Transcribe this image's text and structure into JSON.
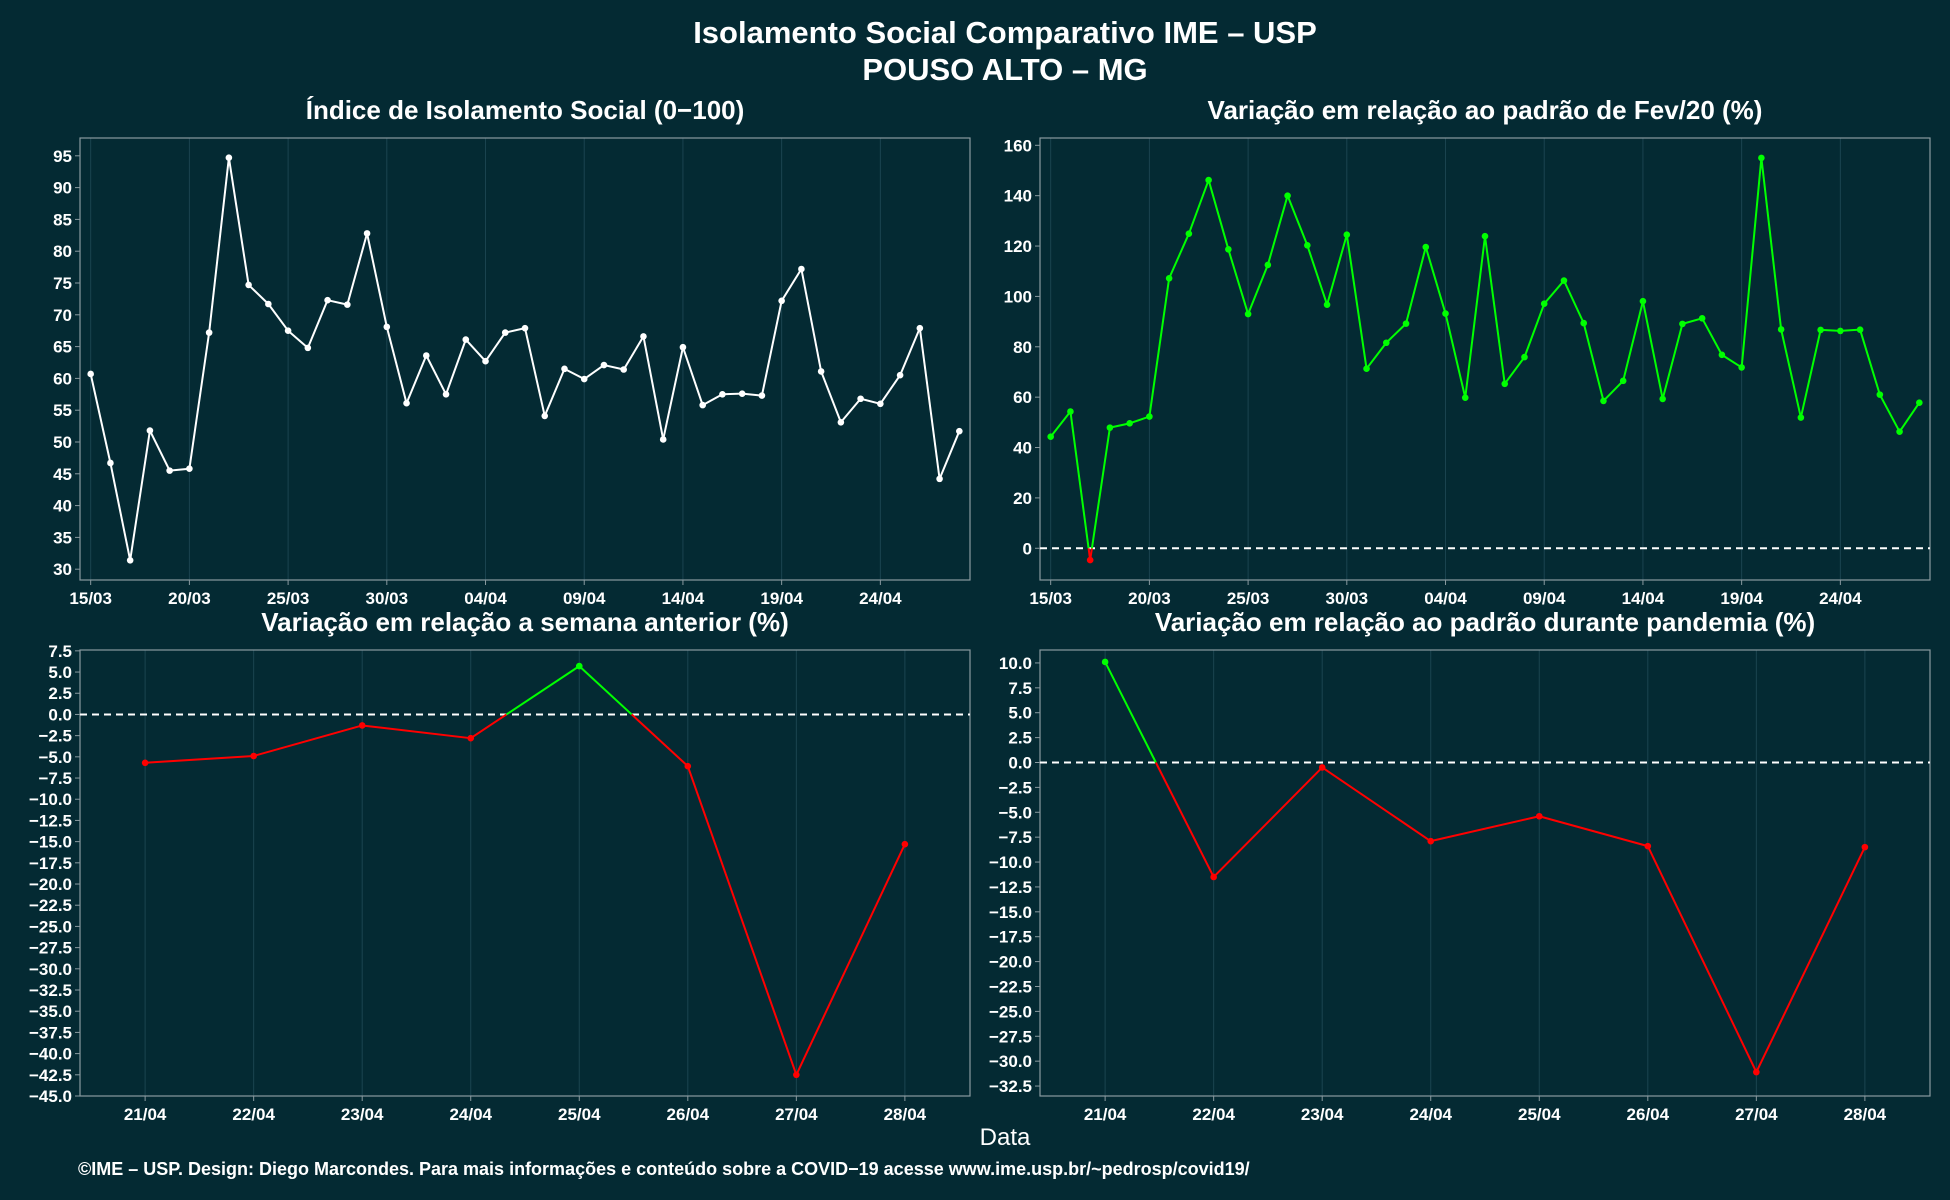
{
  "header": {
    "title_line1": "Isolamento Social Comparativo IME – USP",
    "title_line2": "POUSO ALTO – MG"
  },
  "x_label": "Data",
  "footer": "©IME – USP. Design: Diego Marcondes. Para mais informações e conteúdo sobre a COVID−19 acesse www.ime.usp.br/~pedrosp/covid19/",
  "colors": {
    "background": "#042a33",
    "white": "#ffffff",
    "positive": "#00ff00",
    "negative": "#ff0000",
    "grid": "#1b4450",
    "axis": "#8a9aa0"
  },
  "chart_data": [
    {
      "type": "line",
      "title": "Índice de Isolamento Social (0−100)",
      "color_mode": "white",
      "reference_line": null,
      "grid": true,
      "x": [
        "15/03",
        "16/03",
        "17/03",
        "18/03",
        "19/03",
        "20/03",
        "21/03",
        "22/03",
        "23/03",
        "24/03",
        "25/03",
        "26/03",
        "27/03",
        "28/03",
        "29/03",
        "30/03",
        "31/03",
        "01/04",
        "02/04",
        "03/04",
        "04/04",
        "05/04",
        "06/04",
        "07/04",
        "08/04",
        "09/04",
        "10/04",
        "11/04",
        "12/04",
        "13/04",
        "14/04",
        "15/04",
        "16/04",
        "17/04",
        "18/04",
        "19/04",
        "20/04",
        "21/04",
        "22/04",
        "23/04",
        "24/04",
        "25/04",
        "26/04",
        "27/04",
        "28/04"
      ],
      "values": [
        60.7,
        46.7,
        31.4,
        51.8,
        45.5,
        45.8,
        67.2,
        94.7,
        74.7,
        71.7,
        67.5,
        64.8,
        72.3,
        71.6,
        82.8,
        68.1,
        56.1,
        63.6,
        57.5,
        66.1,
        62.7,
        67.2,
        67.9,
        54.1,
        61.5,
        59.9,
        62.1,
        61.4,
        66.6,
        50.4,
        64.9,
        55.8,
        57.5,
        57.6,
        57.3,
        72.2,
        77.2,
        61.1,
        53.1,
        56.8,
        56.0,
        60.5,
        67.9,
        44.2,
        51.7
      ],
      "x_ticks": [
        "15/03",
        "20/03",
        "25/03",
        "30/03",
        "04/04",
        "09/04",
        "14/04",
        "19/04",
        "24/04"
      ],
      "y_ticks": [
        30,
        35,
        40,
        45,
        50,
        55,
        60,
        65,
        70,
        75,
        80,
        85,
        90,
        95
      ],
      "ylim": [
        28.3,
        97.8
      ]
    },
    {
      "type": "line",
      "title": "Variação em relação ao padrão de Fev/20 (%)",
      "color_mode": "sign",
      "reference_line": 0,
      "grid": true,
      "x": [
        "15/03",
        "16/03",
        "17/03",
        "18/03",
        "19/03",
        "20/03",
        "21/03",
        "22/03",
        "23/03",
        "24/03",
        "25/03",
        "26/03",
        "27/03",
        "28/03",
        "29/03",
        "30/03",
        "31/03",
        "01/04",
        "02/04",
        "03/04",
        "04/04",
        "05/04",
        "06/04",
        "07/04",
        "08/04",
        "09/04",
        "10/04",
        "11/04",
        "12/04",
        "13/04",
        "14/04",
        "15/04",
        "16/04",
        "17/04",
        "18/04",
        "19/04",
        "20/04",
        "21/04",
        "22/04",
        "23/04",
        "24/04",
        "25/04",
        "26/04",
        "27/04",
        "28/04"
      ],
      "values": [
        44.3,
        54.3,
        -4.7,
        47.9,
        49.6,
        52.3,
        107.2,
        124.9,
        146.2,
        118.7,
        93.0,
        112.5,
        140.0,
        120.3,
        96.7,
        124.5,
        71.3,
        81.6,
        89.2,
        119.6,
        93.2,
        59.8,
        123.9,
        65.3,
        75.9,
        97.1,
        106.3,
        89.4,
        58.5,
        66.5,
        98.1,
        59.3,
        89.1,
        91.3,
        76.8,
        71.8,
        155.0,
        86.9,
        51.9,
        86.7,
        86.3,
        86.8,
        61.0,
        46.3,
        57.8
      ],
      "x_ticks": [
        "15/03",
        "20/03",
        "25/03",
        "30/03",
        "04/04",
        "09/04",
        "14/04",
        "19/04",
        "24/04"
      ],
      "y_ticks": [
        0,
        20,
        40,
        60,
        80,
        100,
        120,
        140,
        160
      ],
      "ylim": [
        -12.6,
        162.9
      ]
    },
    {
      "type": "line",
      "title": "Variação em relação a semana anterior (%)",
      "color_mode": "sign",
      "reference_line": 0,
      "grid": true,
      "x": [
        "21/04",
        "22/04",
        "23/04",
        "24/04",
        "25/04",
        "26/04",
        "27/04",
        "28/04"
      ],
      "values": [
        -5.7,
        -4.9,
        -1.3,
        -2.8,
        5.7,
        -6.1,
        -42.5,
        -15.3
      ],
      "x_ticks": [
        "21/04",
        "22/04",
        "23/04",
        "24/04",
        "25/04",
        "26/04",
        "27/04",
        "28/04"
      ],
      "y_ticks": [
        7.5,
        5.0,
        2.5,
        0.0,
        -2.5,
        -5.0,
        -7.5,
        -10.0,
        -12.5,
        -15.0,
        -17.5,
        -20.0,
        -22.5,
        -25.0,
        -27.5,
        -30.0,
        -32.5,
        -35.0,
        -37.5,
        -40.0,
        -42.5,
        -45.0
      ],
      "ylim": [
        -45.0,
        7.6
      ]
    },
    {
      "type": "line",
      "title": "Variação em relação ao padrão durante pandemia (%)",
      "color_mode": "sign",
      "reference_line": 0,
      "grid": true,
      "x": [
        "21/04",
        "22/04",
        "23/04",
        "24/04",
        "25/04",
        "26/04",
        "27/04",
        "28/04"
      ],
      "values": [
        10.1,
        -11.5,
        -0.5,
        -7.9,
        -5.4,
        -8.4,
        -31.1,
        -8.5
      ],
      "x_ticks": [
        "21/04",
        "22/04",
        "23/04",
        "24/04",
        "25/04",
        "26/04",
        "27/04",
        "28/04"
      ],
      "y_ticks": [
        10.0,
        7.5,
        5.0,
        2.5,
        0.0,
        -2.5,
        -5.0,
        -7.5,
        -10.0,
        -12.5,
        -15.0,
        -17.5,
        -20.0,
        -22.5,
        -25.0,
        -27.5,
        -30.0,
        -32.5
      ],
      "ylim": [
        -33.5,
        11.3
      ]
    }
  ]
}
